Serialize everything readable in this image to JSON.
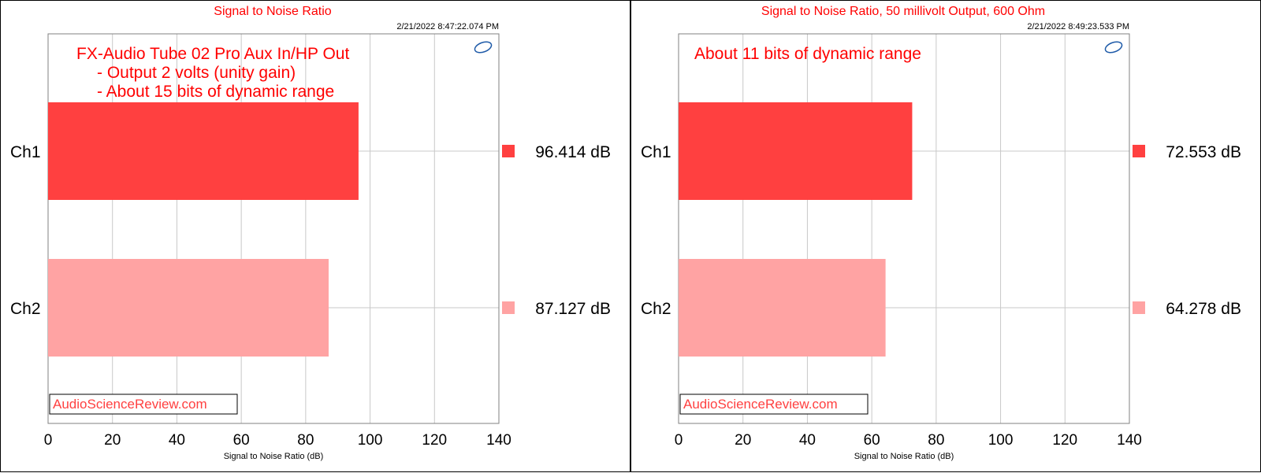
{
  "colors": {
    "ch1": "#ff4040",
    "ch2": "#ffa3a3",
    "title": "#ff0000",
    "annotation": "#ff0000",
    "watermark": "#ff4040",
    "grid": "#c8c8c8",
    "logo": "#1e5aa8"
  },
  "logo_icon": "ap-logo-icon",
  "watermark": "AudioScienceReview.com",
  "chart_data": [
    {
      "type": "bar",
      "orientation": "horizontal",
      "title": "Signal to Noise Ratio",
      "timestamp": "2/21/2022 8:47:22.074 PM",
      "xlabel": "Signal to Noise Ratio (dB)",
      "ylabel": "",
      "xlim": [
        0,
        140
      ],
      "xticks": [
        "0",
        "20",
        "40",
        "60",
        "80",
        "100",
        "120",
        "140"
      ],
      "grid": true,
      "categories": [
        "Ch1",
        "Ch2"
      ],
      "values": [
        96.414,
        87.127
      ],
      "value_labels": [
        "96.414  dB",
        "87.127  dB"
      ],
      "annotations": [
        "FX-Audio Tube 02 Pro Aux In/HP Out",
        "- Output 2 volts (unity gain)",
        "- About 15 bits of dynamic range"
      ]
    },
    {
      "type": "bar",
      "orientation": "horizontal",
      "title": "Signal to Noise Ratio, 50 millivolt Output, 600 Ohm",
      "timestamp": "2/21/2022 8:49:23.533 PM",
      "xlabel": "Signal to Noise Ratio (dB)",
      "ylabel": "",
      "xlim": [
        0,
        140
      ],
      "xticks": [
        "0",
        "20",
        "40",
        "60",
        "80",
        "100",
        "120",
        "140"
      ],
      "grid": true,
      "categories": [
        "Ch1",
        "Ch2"
      ],
      "values": [
        72.553,
        64.278
      ],
      "value_labels": [
        "72.553  dB",
        "64.278  dB"
      ],
      "annotations": [
        "About 11 bits of dynamic range"
      ]
    }
  ]
}
